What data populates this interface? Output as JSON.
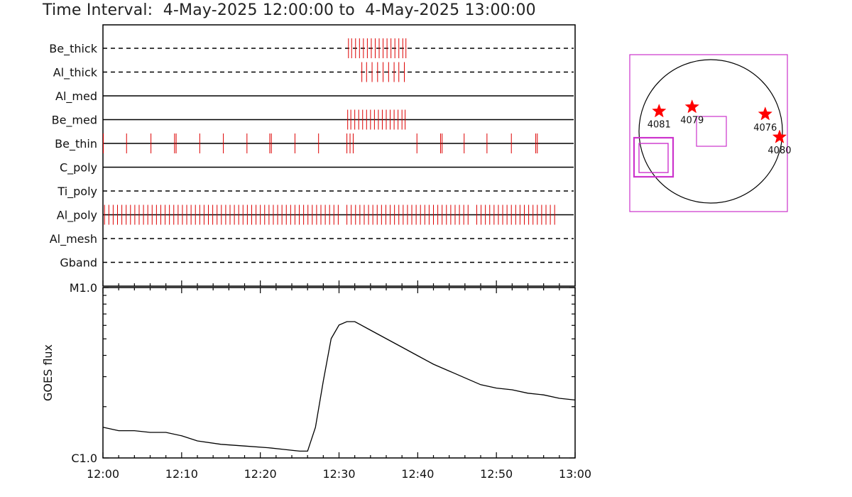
{
  "header": {
    "title_prefix": "Time Interval:",
    "title_range": "4-May-2025 12:00:00 to  4-May-2025 13:00:00"
  },
  "colors": {
    "axis": "#000000",
    "event_marks": "#dd0000",
    "fov_boxes": "#cc33cc",
    "star": "#ff0000"
  },
  "chart_data": [
    {
      "type": "timeline",
      "x_unit": "minutes after 12:00",
      "xlim": [
        0,
        60
      ],
      "line_styles": {
        "solid": "filter in use",
        "dashed": "filter not in use"
      },
      "rows": [
        {
          "name": "Be_thick",
          "style": "dashed",
          "events": [
            31.2,
            31.6,
            32.1,
            32.6,
            33.1,
            33.6,
            34.1,
            34.6,
            35.1,
            35.6,
            36.1,
            36.6,
            37.1,
            37.6,
            38.1,
            38.5
          ]
        },
        {
          "name": "Al_thick",
          "style": "dashed",
          "events": [
            32.9,
            33.5,
            34.2,
            34.9,
            35.6,
            36.3,
            37.0,
            37.6,
            38.3
          ]
        },
        {
          "name": "Al_med",
          "style": "solid",
          "events": []
        },
        {
          "name": "Be_med",
          "style": "solid",
          "events": [
            31.1,
            31.5,
            32.0,
            32.5,
            33.0,
            33.5,
            34.0,
            34.5,
            35.0,
            35.5,
            36.0,
            36.5,
            37.0,
            37.5,
            38.0,
            38.4
          ]
        },
        {
          "name": "Be_thin",
          "style": "solid",
          "events": [
            0.05,
            3.0,
            6.1,
            9.1,
            9.3,
            12.3,
            15.3,
            18.3,
            21.2,
            21.4,
            24.4,
            27.4,
            31.0,
            31.4,
            31.8,
            39.9,
            42.9,
            43.1,
            45.9,
            48.8,
            51.9,
            55.0,
            55.2
          ]
        },
        {
          "name": "C_poly",
          "style": "solid",
          "events": []
        },
        {
          "name": "Ti_poly",
          "style": "dashed",
          "events": []
        },
        {
          "name": "Al_poly",
          "style": "solid",
          "events_range": {
            "start": 0.2,
            "end": 57.4,
            "step": 0.55,
            "gaps": [
              [
                30.0,
                30.9
              ],
              [
                46.8,
                47.3
              ]
            ]
          }
        },
        {
          "name": "Al_mesh",
          "style": "dashed",
          "events": []
        },
        {
          "name": "Gband",
          "style": "dashed",
          "events": []
        }
      ]
    },
    {
      "type": "line",
      "series": [
        {
          "x": [
            0,
            2,
            4,
            6,
            8,
            10,
            12,
            15,
            18,
            21,
            23,
            25,
            26,
            27,
            28,
            29,
            30,
            31,
            32,
            34,
            36,
            38,
            40,
            42,
            44,
            46,
            48,
            50,
            52,
            54,
            56,
            58,
            60
          ],
          "y": [
            0.18,
            0.16,
            0.16,
            0.15,
            0.15,
            0.13,
            0.1,
            0.08,
            0.07,
            0.06,
            0.05,
            0.04,
            0.04,
            0.18,
            0.45,
            0.7,
            0.78,
            0.8,
            0.8,
            0.75,
            0.7,
            0.65,
            0.6,
            0.55,
            0.51,
            0.47,
            0.43,
            0.41,
            0.4,
            0.38,
            0.37,
            0.35,
            0.34
          ]
        }
      ],
      "ylabel": "GOES flux",
      "ytick_labels": [
        "M1.0",
        "C1.0"
      ],
      "xtick_labels": [
        "12:00",
        "12:10",
        "12:20",
        "12:30",
        "12:40",
        "12:50",
        "13:00"
      ],
      "xlim": [
        0,
        60
      ],
      "y_scale_note": "y from 0 at C1.0 to 1 at M1.0 (log-flux fraction)"
    },
    {
      "type": "solar_disk_map",
      "regions": [
        {
          "label": "4081",
          "pos": [
            -0.72,
            0.28
          ]
        },
        {
          "label": "4079",
          "pos": [
            -0.26,
            0.34
          ]
        },
        {
          "label": "4076",
          "pos": [
            0.76,
            0.24
          ]
        },
        {
          "label": "4080",
          "pos": [
            0.96,
            -0.08
          ]
        }
      ]
    }
  ]
}
